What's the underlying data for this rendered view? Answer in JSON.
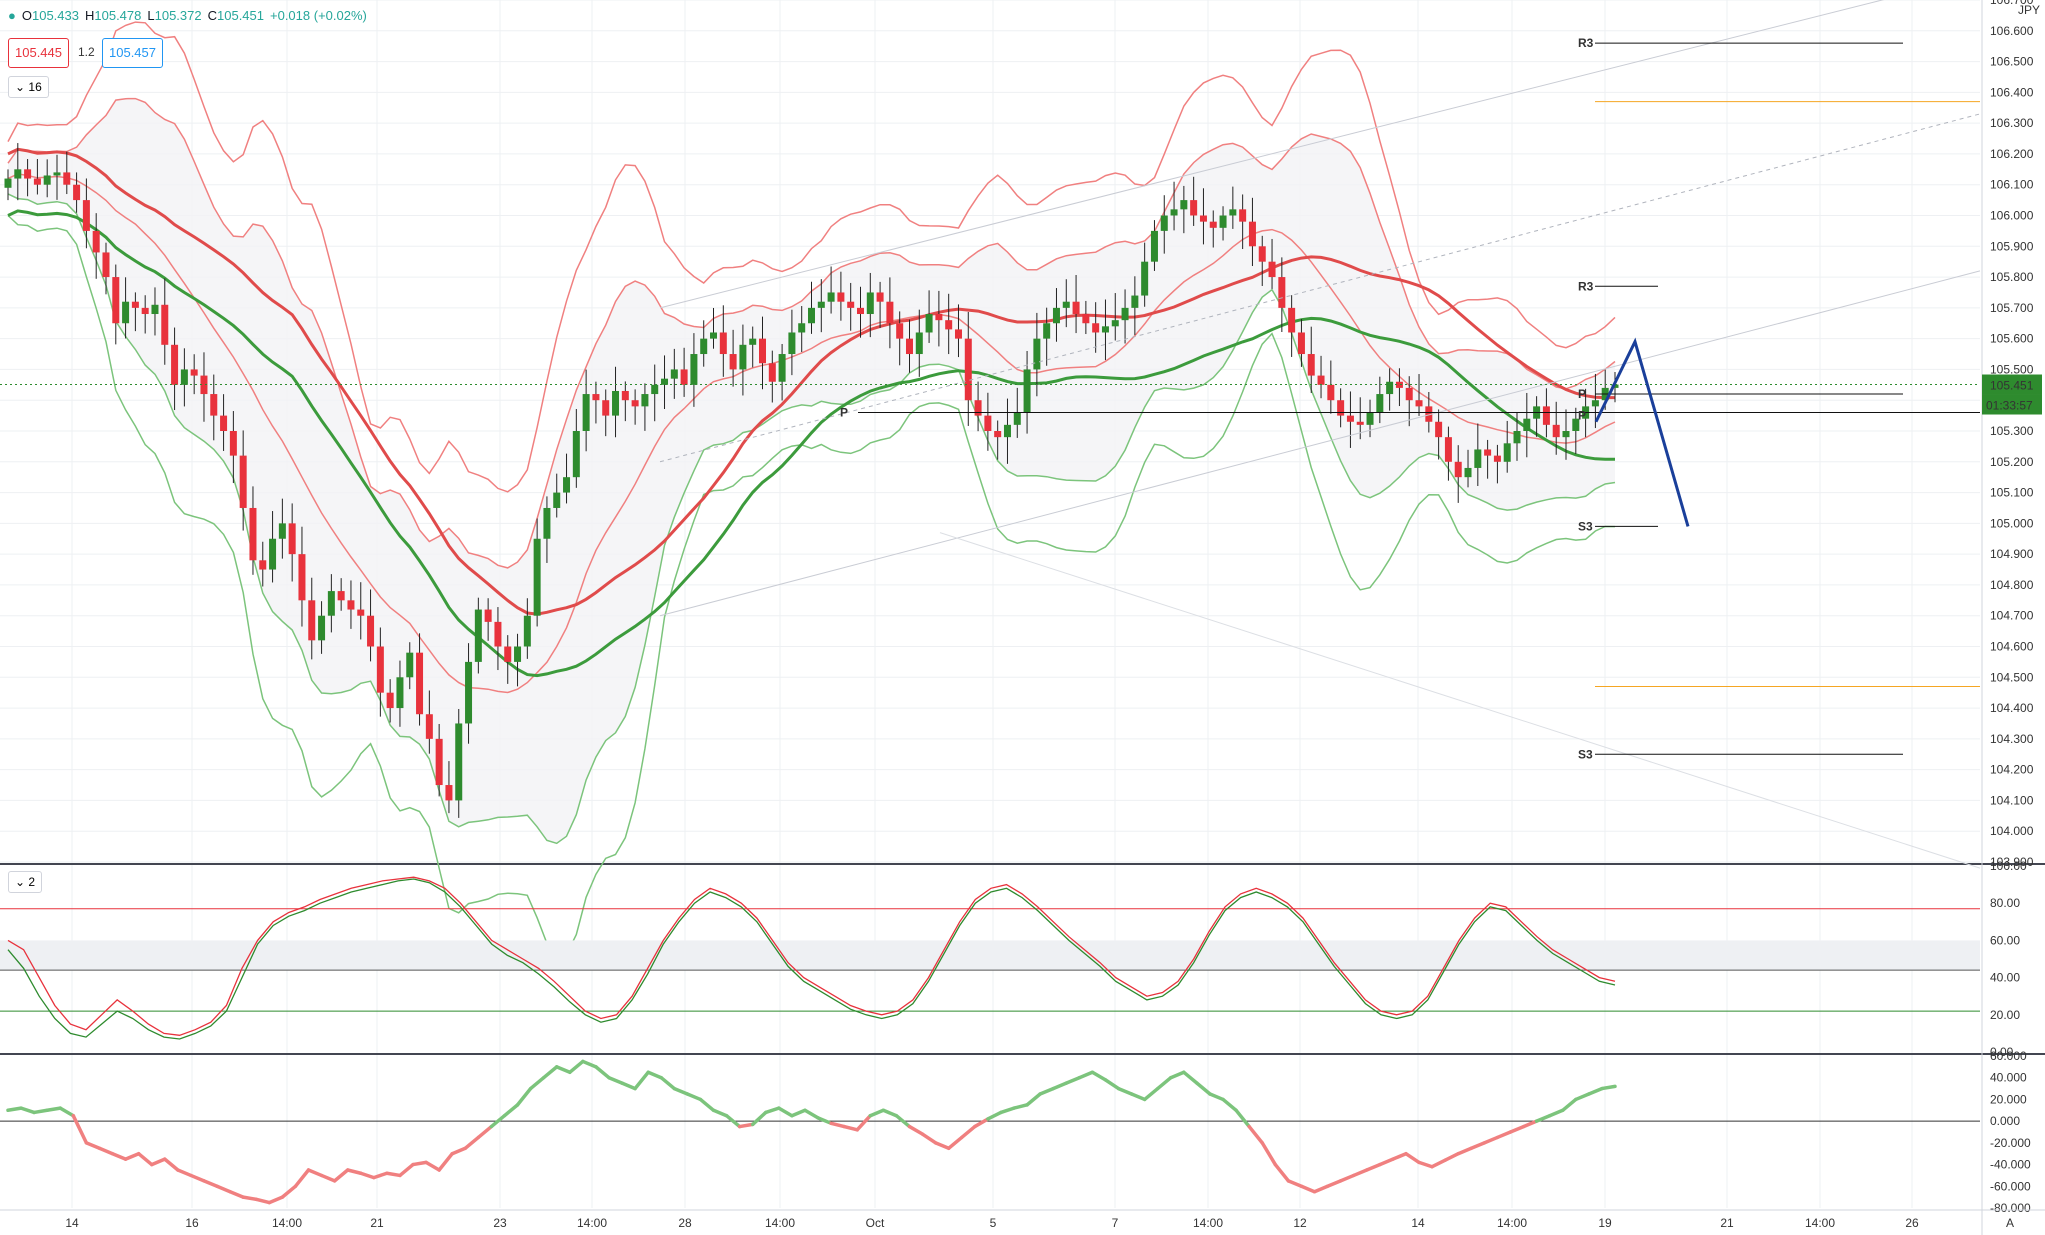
{
  "legend": {
    "dot": "●",
    "open_label": "O",
    "open": "105.433",
    "high_label": "H",
    "high": "105.478",
    "low_label": "L",
    "low": "105.372",
    "close_label": "C",
    "close": "105.451",
    "change": "+0.018 (+0.02%)"
  },
  "bid_box": "105.445",
  "spread": "1.2",
  "ask_box": "105.457",
  "pane1_tag": "⌄ 16",
  "pane2_tag": "⌄ 2",
  "currency": "JPY",
  "countdown": "01:33:57",
  "colors": {
    "bull": "#2e8b2e",
    "bear": "#e8323c",
    "upper_band": "#f08080",
    "lower_band": "#7cc47c",
    "projection": "#1a3f9a",
    "orange": "#f5a623",
    "grid": "#eef0f3"
  },
  "chart_data": [
    {
      "type": "candlestick",
      "title": "",
      "currency": "JPY",
      "ylim": [
        103.9,
        106.7
      ],
      "y_ticks": [
        "106.700",
        "106.600",
        "106.500",
        "106.400",
        "106.300",
        "106.200",
        "106.100",
        "106.000",
        "105.900",
        "105.800",
        "105.700",
        "105.600",
        "105.500",
        "105.400",
        "105.300",
        "105.200",
        "105.100",
        "105.000",
        "104.900",
        "104.800",
        "104.700",
        "104.600",
        "104.500",
        "104.400",
        "104.300",
        "104.200",
        "104.100",
        "104.000",
        "103.900"
      ],
      "x_ticks": [
        "14",
        "16",
        "14:00",
        "21",
        "23",
        "14:00",
        "28",
        "14:00",
        "Oct",
        "5",
        "7",
        "14:00",
        "12",
        "14",
        "14:00",
        "19",
        "21",
        "14:00",
        "26",
        "A"
      ],
      "last_price": 105.451,
      "last_price_label": "105.451",
      "close": [
        106.12,
        106.15,
        106.12,
        106.1,
        106.13,
        106.14,
        106.1,
        106.05,
        105.95,
        105.88,
        105.8,
        105.65,
        105.72,
        105.7,
        105.68,
        105.71,
        105.58,
        105.45,
        105.5,
        105.48,
        105.42,
        105.35,
        105.3,
        105.22,
        105.05,
        104.88,
        104.85,
        104.95,
        105.0,
        104.9,
        104.75,
        104.62,
        104.7,
        104.78,
        104.75,
        104.72,
        104.7,
        104.6,
        104.45,
        104.4,
        104.5,
        104.58,
        104.38,
        104.3,
        104.15,
        104.1,
        104.35,
        104.55,
        104.72,
        104.68,
        104.6,
        104.55,
        104.6,
        104.7,
        104.95,
        105.05,
        105.1,
        105.15,
        105.3,
        105.42,
        105.4,
        105.35,
        105.43,
        105.4,
        105.38,
        105.42,
        105.45,
        105.47,
        105.5,
        105.45,
        105.55,
        105.6,
        105.62,
        105.55,
        105.5,
        105.58,
        105.6,
        105.52,
        105.46,
        105.55,
        105.62,
        105.65,
        105.7,
        105.72,
        105.75,
        105.72,
        105.7,
        105.68,
        105.75,
        105.72,
        105.65,
        105.6,
        105.55,
        105.62,
        105.68,
        105.66,
        105.63,
        105.6,
        105.4,
        105.35,
        105.3,
        105.28,
        105.32,
        105.36,
        105.5,
        105.6,
        105.65,
        105.7,
        105.72,
        105.68,
        105.65,
        105.62,
        105.64,
        105.66,
        105.7,
        105.74,
        105.85,
        105.95,
        106.0,
        106.02,
        106.05,
        106.0,
        105.98,
        105.96,
        106.0,
        106.02,
        105.98,
        105.9,
        105.85,
        105.8,
        105.7,
        105.62,
        105.55,
        105.48,
        105.45,
        105.4,
        105.35,
        105.33,
        105.32,
        105.36,
        105.42,
        105.46,
        105.44,
        105.4,
        105.38,
        105.33,
        105.28,
        105.2,
        105.15,
        105.18,
        105.24,
        105.22,
        105.2,
        105.26,
        105.3,
        105.34,
        105.38,
        105.32,
        105.28,
        105.3,
        105.34,
        105.38,
        105.4,
        105.44,
        105.451
      ]
    },
    {
      "type": "line",
      "title": "",
      "ylim": [
        0,
        100
      ],
      "y_ticks": [
        "100.00",
        "80.00",
        "60.00",
        "40.00",
        "20.00",
        "0.00"
      ],
      "levels": [
        77,
        44,
        22
      ],
      "series": [
        {
          "color": "#e8323c",
          "values": [
            60,
            55,
            40,
            25,
            15,
            12,
            20,
            28,
            22,
            15,
            10,
            9,
            12,
            16,
            25,
            45,
            60,
            70,
            75,
            78,
            82,
            85,
            88,
            90,
            92,
            93,
            94,
            92,
            88,
            80,
            70,
            60,
            55,
            50,
            45,
            38,
            30,
            22,
            18,
            20,
            30,
            45,
            60,
            72,
            82,
            88,
            85,
            80,
            72,
            60,
            48,
            40,
            35,
            30,
            25,
            22,
            20,
            22,
            28,
            40,
            55,
            70,
            82,
            88,
            90,
            85,
            78,
            70,
            62,
            55,
            48,
            40,
            35,
            30,
            32,
            38,
            50,
            65,
            78,
            85,
            88,
            85,
            80,
            72,
            60,
            48,
            38,
            28,
            22,
            20,
            22,
            30,
            45,
            60,
            72,
            80,
            78,
            70,
            62,
            55,
            50,
            45,
            40,
            38
          ]
        },
        {
          "color": "#2e8b2e",
          "values": [
            55,
            45,
            30,
            18,
            10,
            8,
            15,
            22,
            18,
            12,
            8,
            7,
            10,
            14,
            22,
            40,
            58,
            68,
            73,
            76,
            80,
            83,
            86,
            88,
            90,
            92,
            93,
            91,
            86,
            78,
            68,
            58,
            52,
            48,
            42,
            35,
            27,
            20,
            16,
            18,
            28,
            42,
            58,
            70,
            80,
            86,
            83,
            78,
            70,
            58,
            46,
            38,
            33,
            28,
            23,
            20,
            18,
            20,
            26,
            38,
            53,
            68,
            80,
            86,
            88,
            83,
            76,
            68,
            60,
            53,
            46,
            38,
            33,
            28,
            30,
            36,
            48,
            63,
            76,
            83,
            86,
            83,
            78,
            70,
            58,
            46,
            36,
            26,
            20,
            18,
            20,
            28,
            43,
            58,
            70,
            78,
            76,
            68,
            60,
            53,
            48,
            43,
            38,
            36
          ]
        }
      ]
    },
    {
      "type": "line",
      "title": "",
      "ylim": [
        -80,
        60
      ],
      "y_ticks": [
        "60.000",
        "40.000",
        "20.000",
        "0.000",
        "-20.000",
        "-40.000",
        "-60.000",
        "-80.000"
      ],
      "zero_line": 0,
      "values": [
        10,
        12,
        8,
        10,
        12,
        5,
        -20,
        -25,
        -30,
        -35,
        -30,
        -40,
        -35,
        -45,
        -50,
        -55,
        -60,
        -65,
        -70,
        -72,
        -75,
        -70,
        -60,
        -45,
        -50,
        -55,
        -45,
        -48,
        -52,
        -48,
        -50,
        -40,
        -38,
        -45,
        -30,
        -25,
        -15,
        -5,
        5,
        15,
        30,
        40,
        50,
        45,
        55,
        50,
        40,
        35,
        30,
        45,
        40,
        30,
        25,
        20,
        10,
        5,
        -5,
        -3,
        8,
        12,
        5,
        10,
        3,
        -2,
        -5,
        -8,
        5,
        10,
        5,
        -5,
        -12,
        -20,
        -25,
        -15,
        -5,
        2,
        8,
        12,
        15,
        25,
        30,
        35,
        40,
        45,
        38,
        30,
        25,
        20,
        30,
        40,
        45,
        35,
        25,
        20,
        10,
        -5,
        -20,
        -40,
        -55,
        -60,
        -65,
        -60,
        -55,
        -50,
        -45,
        -40,
        -35,
        -30,
        -38,
        -42,
        -36,
        -30,
        -25,
        -20,
        -15,
        -10,
        -5,
        0,
        5,
        10,
        20,
        25,
        30,
        32
      ]
    }
  ],
  "annotations": {
    "pivot_r3_top": "R3",
    "pivot_r3_mid": "R3",
    "pivot_p_left": "P",
    "pivot_p_right": "P",
    "pivot_p_upper": "P",
    "pivot_s3_mid": "S3",
    "pivot_s3_low": "S3"
  }
}
